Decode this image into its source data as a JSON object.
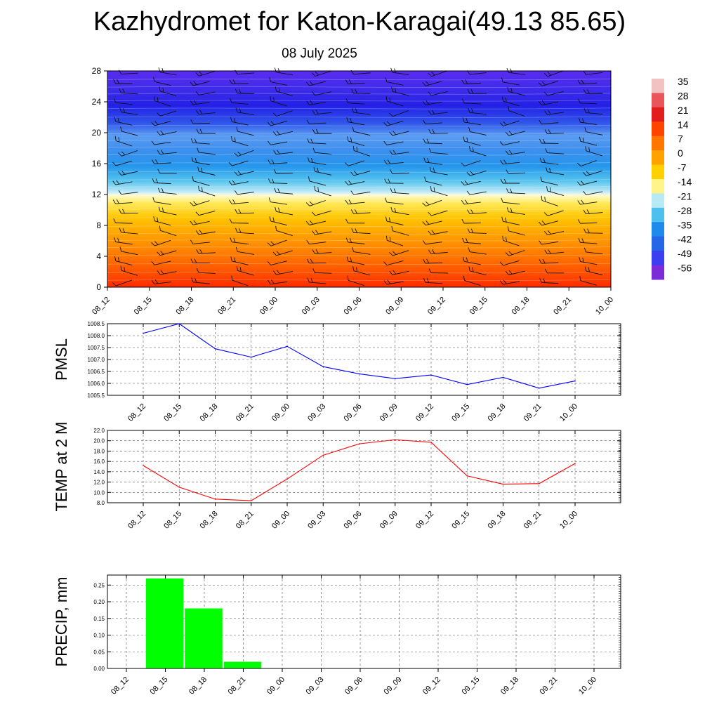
{
  "title": "Kazhydromet for Katon-Karagai(49.13 85.65)",
  "subtitle": "08 July 2025",
  "time_labels": [
    "08_12",
    "08_15",
    "08_18",
    "08_21",
    "09_00",
    "09_03",
    "09_06",
    "09_09",
    "09_12",
    "09_15",
    "09_18",
    "09_21",
    "10_00"
  ],
  "chart_data": [
    {
      "type": "heatmap",
      "title": "",
      "ylabel": "",
      "y_ticks": [
        0,
        4,
        8,
        12,
        16,
        20,
        24,
        28
      ],
      "ylim": [
        0,
        28
      ],
      "colorbar_labels": [
        "35",
        "28",
        "21",
        "14",
        "7",
        "0",
        "-7",
        "-14",
        "-21",
        "-28",
        "-35",
        "-42",
        "-49",
        "-56"
      ],
      "colorbar_colors": [
        "#f2c2c2",
        "#e8555a",
        "#e31d1d",
        "#ff4400",
        "#ff7700",
        "#ffa200",
        "#ffd000",
        "#fff48a",
        "#b8eaf5",
        "#4fc0ee",
        "#1e8aeb",
        "#2466e6",
        "#3b3ff0",
        "#7b2bd8"
      ],
      "overlay": "wind barbs",
      "grid": false
    },
    {
      "type": "line",
      "ylabel": "PMSL",
      "categories": [
        "08_12",
        "08_15",
        "08_18",
        "08_21",
        "09_00",
        "09_03",
        "09_06",
        "09_09",
        "09_12",
        "09_15",
        "09_18",
        "09_21",
        "10_00"
      ],
      "series": [
        {
          "values": [
            1008.1,
            1008.5,
            1007.45,
            1007.1,
            1007.55,
            1006.7,
            1006.4,
            1006.2,
            1006.35,
            1005.95,
            1006.25,
            1005.8,
            1006.1
          ]
        }
      ],
      "ylim": [
        1005.5,
        1008.5
      ],
      "y_ticks": [
        "1005.5",
        "1006.0",
        "1006.5",
        "1007.0",
        "1007.5",
        "1008.0",
        "1008.5"
      ],
      "color": "#0000ff",
      "grid": true
    },
    {
      "type": "line",
      "ylabel": "TEMP at 2 M",
      "categories": [
        "08_12",
        "08_15",
        "08_18",
        "08_21",
        "09_00",
        "09_03",
        "09_06",
        "09_09",
        "09_12",
        "09_15",
        "09_18",
        "09_21",
        "10_00"
      ],
      "series": [
        {
          "values": [
            15.2,
            11.0,
            8.7,
            8.4,
            12.6,
            17.2,
            19.4,
            20.2,
            19.7,
            13.2,
            11.6,
            11.7,
            15.6
          ]
        }
      ],
      "ylim": [
        8,
        22
      ],
      "y_ticks": [
        "8.0",
        "10.0",
        "12.0",
        "14.0",
        "16.0",
        "18.0",
        "20.0",
        "22.0"
      ],
      "color": "#ff0000",
      "grid": true
    },
    {
      "type": "bar",
      "ylabel": "PRECIP, mm",
      "categories": [
        "08_12",
        "08_15",
        "08_18",
        "08_21",
        "09_00",
        "09_03",
        "09_06",
        "09_09",
        "09_12",
        "09_15",
        "09_18",
        "09_21",
        "10_00"
      ],
      "values": [
        0,
        0.27,
        0.18,
        0.02,
        0,
        0,
        0,
        0,
        0,
        0,
        0,
        0,
        0
      ],
      "ylim": [
        0,
        0.28
      ],
      "y_ticks": [
        "0.00",
        "0.05",
        "0.10",
        "0.15",
        "0.20",
        "0.25"
      ],
      "color": "#00ff00",
      "grid": true
    }
  ]
}
